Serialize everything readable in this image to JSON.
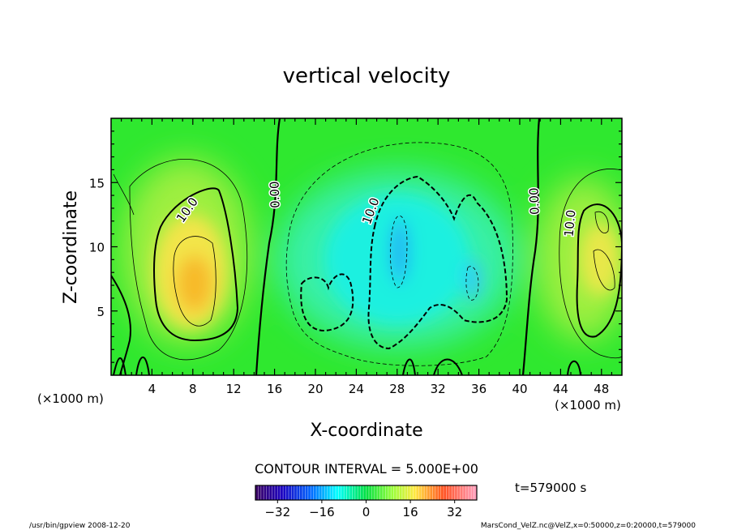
{
  "chart_data": {
    "type": "heatmap",
    "title": "vertical velocity",
    "xlabel": "X-coordinate",
    "ylabel": "Z-coordinate",
    "x_unit": "(×1000 m)",
    "y_unit": "(×1000 m)",
    "xlim": [
      0,
      50
    ],
    "ylim": [
      0,
      20
    ],
    "x_ticks": [
      "4",
      "8",
      "12",
      "16",
      "20",
      "24",
      "28",
      "32",
      "36",
      "40",
      "44",
      "48"
    ],
    "y_ticks": [
      "5",
      "10",
      "15"
    ],
    "contour_labels": [
      "10.0",
      "0.00",
      "10.0",
      "0.00",
      "10.0"
    ],
    "contour_interval": "CONTOUR INTERVAL = 5.000E+00",
    "colorbar": {
      "min": -40,
      "max": 40,
      "ticks": [
        "−32",
        "−16",
        "0",
        "16",
        "32"
      ]
    },
    "time_label": "t=579000 s",
    "footer_left": "/usr/bin/gpview   2008-12-20",
    "footer_right": "MarsCond_VelZ.nc@VelZ,x=0:50000,z=0:20000,t=579000",
    "features": [
      {
        "kind": "updraft",
        "x_km": 8.5,
        "z_km": 7.5,
        "peak_value": 17
      },
      {
        "kind": "downdraft",
        "x_km": 28,
        "z_km": 9.5,
        "peak_value": -12
      },
      {
        "kind": "downdraft",
        "x_km": 35,
        "z_km": 7.5,
        "peak_value": -10
      },
      {
        "kind": "updraft",
        "x_km": 48.5,
        "z_km": 8,
        "peak_value": 15
      }
    ]
  }
}
